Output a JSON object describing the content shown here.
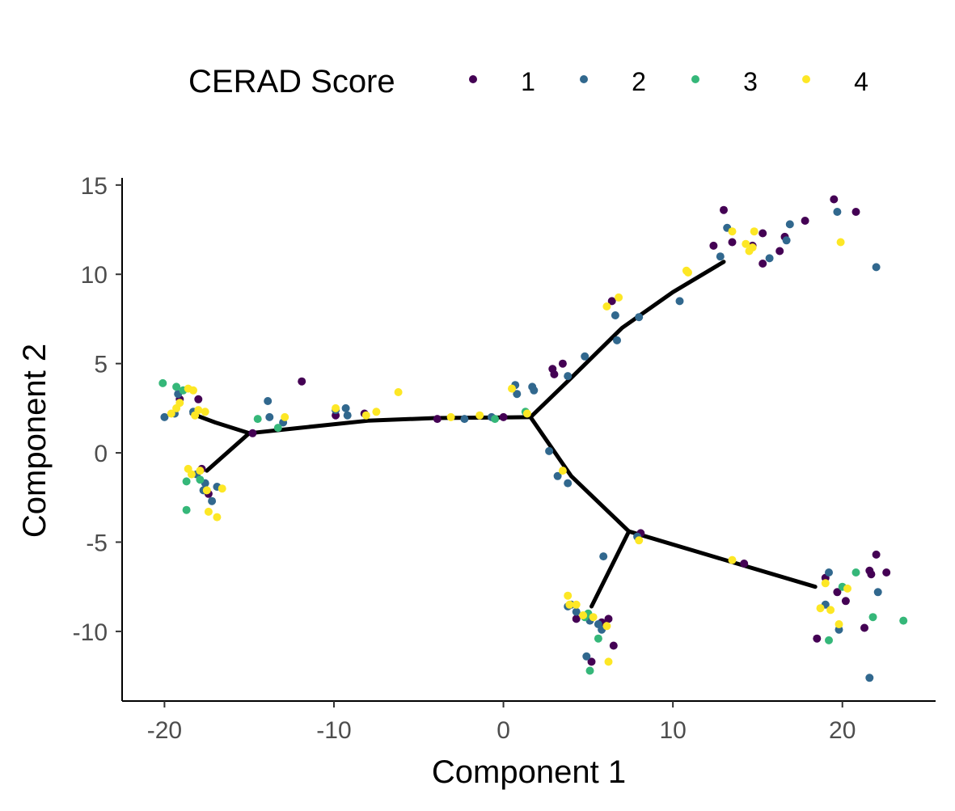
{
  "chart_data": {
    "type": "scatter",
    "title": "",
    "xlabel": "Component 1",
    "ylabel": "Component 2",
    "xlim": [
      -22.5,
      25.5
    ],
    "ylim": [
      -13.9,
      15.4
    ],
    "xticks": [
      -20,
      -10,
      0,
      10,
      20
    ],
    "yticks": [
      15,
      10,
      5,
      0,
      -5,
      -10
    ],
    "xtick_labels": [
      "-20",
      "-10",
      "0",
      "10",
      "20"
    ],
    "ytick_labels": [
      "15",
      "10",
      "5",
      "0",
      "-5",
      "-10"
    ],
    "grid": false,
    "legend": {
      "title": "CERAD Score",
      "position": "top"
    },
    "trajectory": [
      [
        [
          -18.4,
          2.2
        ],
        [
          -17,
          1.7
        ],
        [
          -15,
          1.1
        ],
        [
          -12,
          1.4
        ],
        [
          -8,
          1.8
        ],
        [
          -4,
          1.95
        ],
        [
          1.6,
          2.0
        ]
      ],
      [
        [
          -17.5,
          -1.0
        ],
        [
          -15,
          1.1
        ]
      ],
      [
        [
          1.6,
          2.0
        ],
        [
          4,
          4.2
        ],
        [
          7,
          7.0
        ],
        [
          10,
          9.0
        ],
        [
          13,
          10.7
        ]
      ],
      [
        [
          1.6,
          2.0
        ],
        [
          4,
          -1.3
        ],
        [
          7.4,
          -4.4
        ]
      ],
      [
        [
          7.4,
          -4.4
        ],
        [
          12,
          -5.7
        ],
        [
          18.4,
          -7.5
        ]
      ],
      [
        [
          7.4,
          -4.4
        ],
        [
          5.2,
          -8.6
        ]
      ]
    ],
    "series": [
      {
        "name": "1",
        "color": "#440154",
        "points": [
          [
            -19.1,
            3.0
          ],
          [
            -18.0,
            3.0
          ],
          [
            -17.8,
            -0.9
          ],
          [
            -17.4,
            -2.3
          ],
          [
            -14.8,
            1.1
          ],
          [
            -11.9,
            4.0
          ],
          [
            -9.9,
            2.1
          ],
          [
            -8.2,
            2.2
          ],
          [
            -3.9,
            1.9
          ],
          [
            0.0,
            2.0
          ],
          [
            2.9,
            4.7
          ],
          [
            3.0,
            4.4
          ],
          [
            3.5,
            5.0
          ],
          [
            6.4,
            8.5
          ],
          [
            12.4,
            11.6
          ],
          [
            13.0,
            13.6
          ],
          [
            13.5,
            11.8
          ],
          [
            14.7,
            11.6
          ],
          [
            15.3,
            12.3
          ],
          [
            15.3,
            10.6
          ],
          [
            16.3,
            11.3
          ],
          [
            16.6,
            12.1
          ],
          [
            17.8,
            13.0
          ],
          [
            19.5,
            14.2
          ],
          [
            20.8,
            13.5
          ],
          [
            8.1,
            -4.5
          ],
          [
            14.2,
            -6.2
          ],
          [
            4.3,
            -9.3
          ],
          [
            5.2,
            -11.7
          ],
          [
            5.8,
            -9.5
          ],
          [
            6.2,
            -9.3
          ],
          [
            6.5,
            -10.8
          ],
          [
            19.0,
            -7.0
          ],
          [
            19.7,
            -7.8
          ],
          [
            20.2,
            -8.3
          ],
          [
            21.6,
            -6.6
          ],
          [
            21.7,
            -6.8
          ],
          [
            22.0,
            -5.7
          ],
          [
            22.6,
            -6.7
          ],
          [
            18.5,
            -10.4
          ],
          [
            21.3,
            -9.8
          ]
        ]
      },
      {
        "name": "2",
        "color": "#31688e",
        "points": [
          [
            -20.0,
            2.0
          ],
          [
            -19.4,
            2.2
          ],
          [
            -19.2,
            3.3
          ],
          [
            -18.3,
            2.3
          ],
          [
            -18.1,
            -1.2
          ],
          [
            -17.7,
            -2.1
          ],
          [
            -17.6,
            -1.7
          ],
          [
            -17.2,
            -2.7
          ],
          [
            -16.9,
            -1.9
          ],
          [
            -13.9,
            2.9
          ],
          [
            -13.8,
            2.0
          ],
          [
            -13.0,
            1.7
          ],
          [
            -9.9,
            2.4
          ],
          [
            -9.3,
            2.5
          ],
          [
            -9.2,
            2.1
          ],
          [
            -2.3,
            1.9
          ],
          [
            -0.7,
            2.0
          ],
          [
            0.7,
            3.8
          ],
          [
            0.8,
            3.3
          ],
          [
            1.7,
            3.7
          ],
          [
            1.8,
            3.5
          ],
          [
            2.7,
            0.1
          ],
          [
            3.2,
            -1.3
          ],
          [
            3.8,
            4.3
          ],
          [
            3.8,
            -1.7
          ],
          [
            4.8,
            5.4
          ],
          [
            6.6,
            7.7
          ],
          [
            6.7,
            6.3
          ],
          [
            8.0,
            7.6
          ],
          [
            10.4,
            8.5
          ],
          [
            12.8,
            11.0
          ],
          [
            13.2,
            12.6
          ],
          [
            15.7,
            10.9
          ],
          [
            16.7,
            11.9
          ],
          [
            16.9,
            12.8
          ],
          [
            19.7,
            13.5
          ],
          [
            22.0,
            10.4
          ],
          [
            5.9,
            -5.8
          ],
          [
            7.9,
            -4.7
          ],
          [
            3.8,
            -8.6
          ],
          [
            4.0,
            -8.5
          ],
          [
            4.3,
            -8.9
          ],
          [
            4.9,
            -11.4
          ],
          [
            5.1,
            -9.4
          ],
          [
            5.6,
            -9.6
          ],
          [
            5.8,
            -9.9
          ],
          [
            19.2,
            -6.7
          ],
          [
            19.0,
            -8.5
          ],
          [
            19.8,
            -9.9
          ],
          [
            21.6,
            -12.6
          ],
          [
            22.1,
            -7.8
          ]
        ]
      },
      {
        "name": "3",
        "color": "#35b779",
        "points": [
          [
            -20.1,
            3.9
          ],
          [
            -19.3,
            3.7
          ],
          [
            -18.9,
            3.5
          ],
          [
            -18.7,
            -1.6
          ],
          [
            -18.7,
            -3.2
          ],
          [
            -17.9,
            -1.5
          ],
          [
            -14.5,
            1.9
          ],
          [
            -13.3,
            1.4
          ],
          [
            -0.5,
            1.9
          ],
          [
            1.3,
            2.3
          ],
          [
            4.8,
            -9.2
          ],
          [
            5.0,
            -9.0
          ],
          [
            5.1,
            -12.2
          ],
          [
            5.6,
            -10.4
          ],
          [
            20.0,
            -7.5
          ],
          [
            20.8,
            -6.7
          ],
          [
            21.8,
            -9.2
          ],
          [
            23.6,
            -9.4
          ],
          [
            19.2,
            -10.5
          ]
        ]
      },
      {
        "name": "4",
        "color": "#fde725",
        "points": [
          [
            -19.6,
            2.2
          ],
          [
            -19.3,
            2.5
          ],
          [
            -19.1,
            2.8
          ],
          [
            -18.6,
            3.6
          ],
          [
            -18.3,
            3.5
          ],
          [
            -18.2,
            2.1
          ],
          [
            -18.0,
            2.4
          ],
          [
            -17.6,
            2.3
          ],
          [
            -18.6,
            -0.9
          ],
          [
            -18.4,
            -1.2
          ],
          [
            -17.9,
            -1.0
          ],
          [
            -17.5,
            -2.1
          ],
          [
            -17.4,
            -3.3
          ],
          [
            -16.9,
            -3.6
          ],
          [
            -16.6,
            -2.0
          ],
          [
            -12.9,
            2.0
          ],
          [
            -9.9,
            2.5
          ],
          [
            -8.1,
            2.1
          ],
          [
            -7.5,
            2.3
          ],
          [
            -6.2,
            3.4
          ],
          [
            -3.1,
            2.0
          ],
          [
            -1.4,
            2.1
          ],
          [
            0.5,
            3.6
          ],
          [
            1.4,
            2.2
          ],
          [
            3.5,
            -1.0
          ],
          [
            6.1,
            8.2
          ],
          [
            6.8,
            8.7
          ],
          [
            10.8,
            10.2
          ],
          [
            10.9,
            10.1
          ],
          [
            13.5,
            12.4
          ],
          [
            14.3,
            11.7
          ],
          [
            14.5,
            11.3
          ],
          [
            14.7,
            11.5
          ],
          [
            14.8,
            12.4
          ],
          [
            19.9,
            11.8
          ],
          [
            8.0,
            -4.9
          ],
          [
            13.5,
            -6.0
          ],
          [
            3.8,
            -8.0
          ],
          [
            3.9,
            -8.5
          ],
          [
            4.3,
            -8.5
          ],
          [
            4.7,
            -9.1
          ],
          [
            5.3,
            -9.2
          ],
          [
            6.1,
            -9.7
          ],
          [
            6.2,
            -11.7
          ],
          [
            18.7,
            -8.7
          ],
          [
            19.0,
            -7.3
          ],
          [
            19.3,
            -8.8
          ],
          [
            19.8,
            -9.6
          ],
          [
            20.3,
            -7.6
          ]
        ]
      }
    ]
  }
}
